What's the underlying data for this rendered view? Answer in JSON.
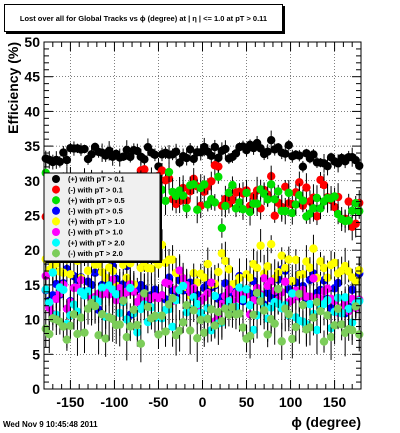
{
  "header": {
    "title": "Lost over all for Global Tracks vs ϕ (degree) at | η | <= 1.0 at pT > 0.11",
    "timestamp": "Wed Nov  9 10:45:48 2011"
  },
  "chart_data": {
    "type": "scatter",
    "title": "Lost over all for Global Tracks vs ϕ (degree) at | η | <= 1.0 at pT > 0.11",
    "xlabel": "ϕ (degree)",
    "ylabel": "Efficiency (%)",
    "xlim": [
      -180,
      180
    ],
    "ylim": [
      0,
      50
    ],
    "x_ticks": [
      -150,
      -100,
      -50,
      0,
      50,
      100,
      150
    ],
    "y_ticks": [
      0,
      5,
      10,
      15,
      20,
      25,
      30,
      35,
      40,
      45,
      50
    ],
    "grid": true,
    "error_bars": true,
    "legend_position": "left",
    "legend": [
      "(+) with pT > 0.1",
      "(-) with pT > 0.1",
      "(+) with pT > 0.5",
      "(-) with pT > 0.5",
      "(+) with pT > 1.0",
      "(-) with pT > 1.0",
      "(+) with pT > 2.0",
      "(-) with pT > 2.0"
    ],
    "series": [
      {
        "name": "(+) with pT > 0.1",
        "color": "#000000",
        "sigma": 0.7,
        "err": 1.0,
        "x": [
          -172,
          -140,
          -100,
          -60,
          -20,
          20,
          60,
          100,
          140,
          172
        ],
        "y": [
          32.5,
          34.5,
          33.5,
          34.0,
          33.5,
          34.0,
          34.5,
          34.0,
          33.0,
          32.5
        ]
      },
      {
        "name": "(-) with pT > 0.1",
        "color": "#ff0000",
        "sigma": 1.5,
        "err": 1.5,
        "x": [
          -172,
          -140,
          -100,
          -60,
          -20,
          20,
          60,
          100,
          140,
          172
        ],
        "y": [
          27.0,
          29.5,
          28.5,
          29.5,
          27.5,
          29.0,
          28.0,
          28.5,
          27.5,
          26.0
        ]
      },
      {
        "name": "(+) with pT > 0.5",
        "color": "#00e000",
        "sigma": 1.5,
        "err": 1.5,
        "x": [
          -172,
          -140,
          -100,
          -60,
          -20,
          20,
          60,
          100,
          140,
          172
        ],
        "y": [
          27.5,
          29.0,
          28.0,
          29.0,
          28.0,
          27.5,
          27.0,
          28.5,
          26.0,
          25.5
        ]
      },
      {
        "name": "(-) with pT > 0.5",
        "color": "#0000ff",
        "sigma": 1.5,
        "err": 2.0,
        "x": [
          -172,
          -140,
          -100,
          -60,
          -20,
          20,
          60,
          100,
          140,
          172
        ],
        "y": [
          14.0,
          14.5,
          15.0,
          14.0,
          15.5,
          13.5,
          14.0,
          15.0,
          14.0,
          13.5
        ]
      },
      {
        "name": "(+) with pT > 1.0",
        "color": "#ffff00",
        "sigma": 1.5,
        "err": 2.0,
        "x": [
          -172,
          -140,
          -100,
          -60,
          -20,
          20,
          60,
          100,
          140,
          172
        ],
        "y": [
          17.0,
          18.0,
          17.0,
          18.5,
          17.0,
          16.0,
          17.5,
          18.0,
          16.5,
          17.0
        ]
      },
      {
        "name": "(-) with pT > 1.0",
        "color": "#ff00ff",
        "sigma": 1.5,
        "err": 2.0,
        "x": [
          -172,
          -140,
          -100,
          -60,
          -20,
          20,
          60,
          100,
          140,
          172
        ],
        "y": [
          13.5,
          13.0,
          14.0,
          13.0,
          13.5,
          12.5,
          13.0,
          14.0,
          13.0,
          12.5
        ]
      },
      {
        "name": "(+) with pT > 2.0",
        "color": "#00ffff",
        "sigma": 1.8,
        "err": 2.5,
        "x": [
          -172,
          -140,
          -100,
          -60,
          -20,
          20,
          60,
          100,
          140,
          172
        ],
        "y": [
          12.0,
          11.5,
          12.5,
          11.5,
          12.0,
          11.0,
          11.5,
          12.0,
          11.5,
          11.0
        ]
      },
      {
        "name": "(-) with pT > 2.0",
        "color": "#7ccd5a",
        "sigma": 1.8,
        "err": 2.5,
        "x": [
          -172,
          -140,
          -100,
          -60,
          -20,
          20,
          60,
          100,
          140,
          172
        ],
        "y": [
          9.5,
          10.0,
          10.5,
          9.5,
          10.0,
          9.5,
          10.0,
          10.5,
          9.5,
          9.0
        ]
      }
    ]
  }
}
